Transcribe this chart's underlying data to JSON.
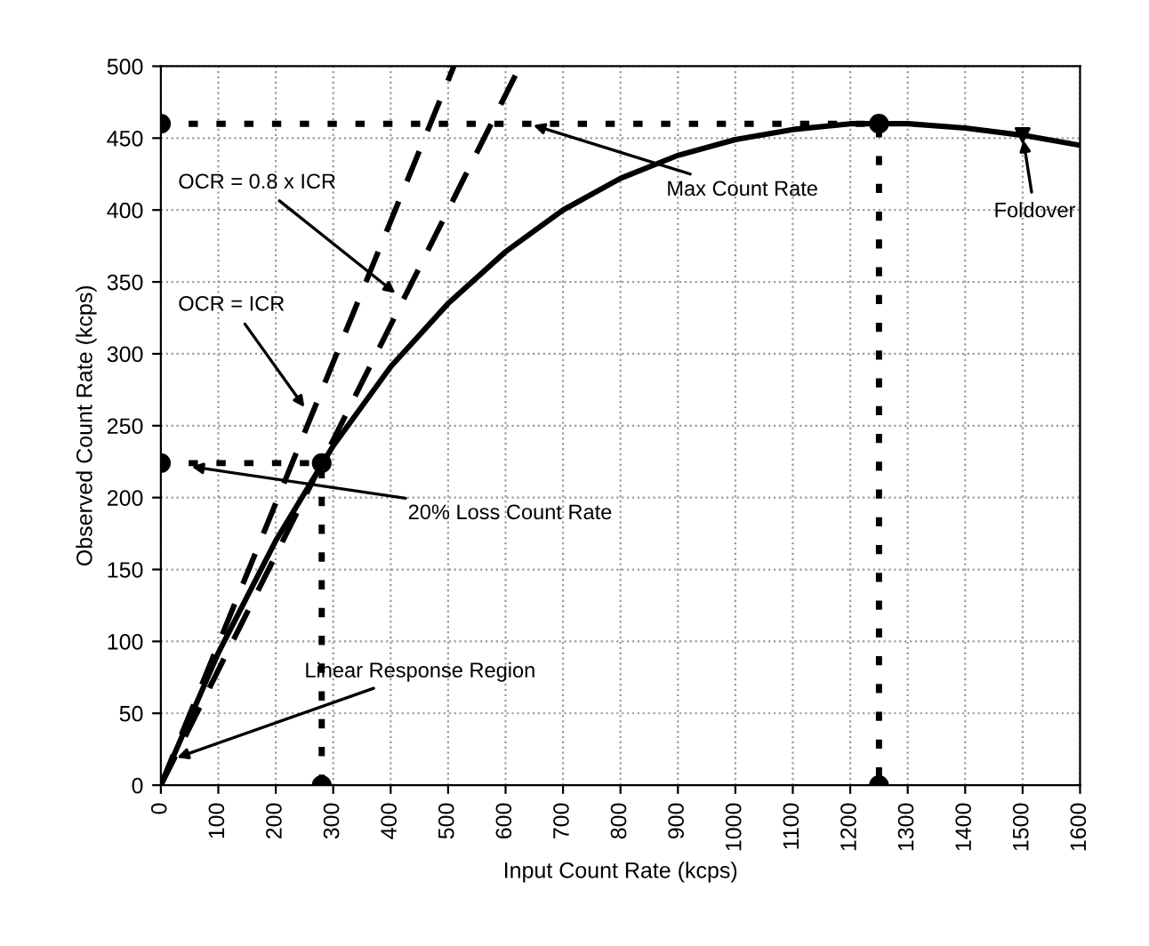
{
  "chart_data": {
    "type": "line",
    "xlabel": "Input Count Rate (kcps)",
    "ylabel": "Observed Count Rate (kcps)",
    "xlim": [
      0,
      1600
    ],
    "xticks": [
      0,
      100,
      200,
      300,
      400,
      500,
      600,
      700,
      800,
      900,
      1000,
      1100,
      1200,
      1300,
      1400,
      1500,
      1600
    ],
    "ylim": [
      0,
      500
    ],
    "yticks": [
      0,
      50,
      100,
      150,
      200,
      250,
      300,
      350,
      400,
      450,
      500
    ],
    "grid": true,
    "series": [
      {
        "color": "#000000",
        "line_style": "solid",
        "marker": "none",
        "x": [
          0,
          100,
          200,
          300,
          400,
          500,
          600,
          700,
          800,
          900,
          1000,
          1100,
          1200,
          1300,
          1400,
          1500,
          1600
        ],
        "values": [
          0,
          92,
          170,
          236,
          291,
          335,
          371,
          400,
          422,
          438,
          449,
          456,
          460,
          460,
          457,
          452,
          445
        ]
      },
      {
        "color": "#000000",
        "line_style": "dashed",
        "marker": "none",
        "x": [
          0,
          510
        ],
        "values": [
          0,
          500
        ]
      },
      {
        "color": "#000000",
        "line_style": "dashed",
        "marker": "none",
        "x": [
          0,
          625
        ],
        "values": [
          0,
          500
        ]
      },
      {
        "color": "#000000",
        "line_style": "dotted",
        "marker": "circle",
        "x": [
          0,
          1250,
          1250
        ],
        "values": [
          460,
          460,
          0
        ]
      },
      {
        "color": "#000000",
        "line_style": "dotted",
        "marker": "circle",
        "x": [
          0,
          280,
          280
        ],
        "values": [
          224,
          224,
          0
        ]
      },
      {
        "type": "scatter",
        "color": "#000000",
        "marker": "triangle",
        "x": [
          1500
        ],
        "values": [
          452
        ]
      }
    ],
    "annotations": [
      {
        "text": "Max Count Rate",
        "x": 640,
        "y": 460
      },
      {
        "text": "Foldover",
        "x": 1500,
        "y": 452
      },
      {
        "text": "OCR = 0.8 x ICR",
        "x": 415,
        "y": 340
      },
      {
        "text": "OCR = ICR",
        "x": 255,
        "y": 260
      },
      {
        "text": "20% Loss Count Rate",
        "x": 45,
        "y": 222
      },
      {
        "text": "Linear Response Region",
        "x": 20,
        "y": 18
      }
    ]
  }
}
